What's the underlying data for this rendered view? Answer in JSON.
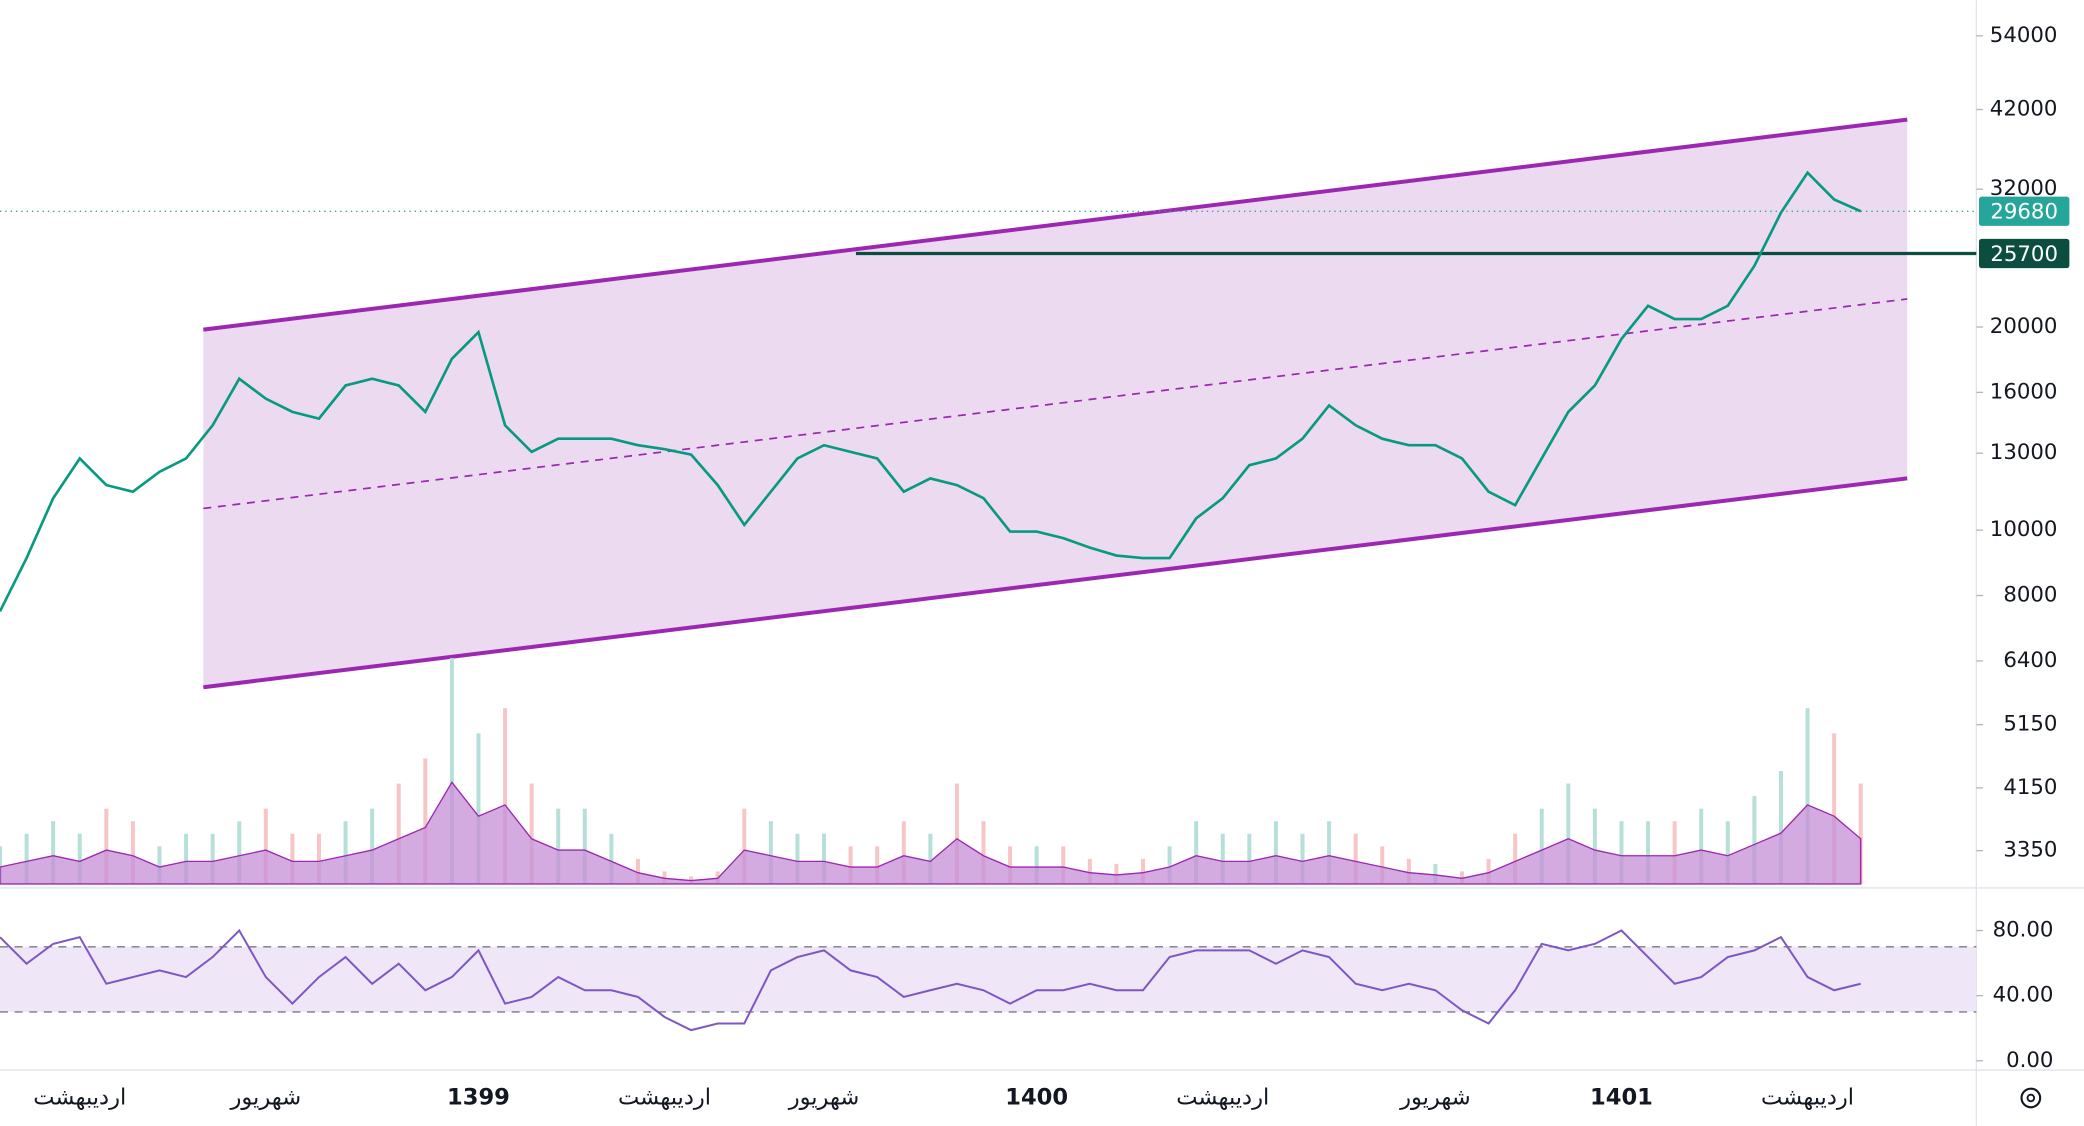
{
  "chart_data": {
    "type": "line",
    "categories": [
      null,
      null,
      null,
      "اردیبهشت",
      null,
      null,
      null,
      null,
      null,
      null,
      "شهریور",
      null,
      null,
      null,
      null,
      null,
      null,
      null,
      "1399",
      null,
      null,
      null,
      null,
      null,
      null,
      "اردیبهشت",
      null,
      null,
      null,
      null,
      null,
      "شهریور",
      null,
      null,
      null,
      null,
      null,
      null,
      null,
      "1400",
      null,
      null,
      null,
      null,
      null,
      null,
      "اردیبهشت",
      null,
      null,
      null,
      null,
      null,
      null,
      null,
      "شهریور",
      null,
      null,
      null,
      null,
      null,
      null,
      "1401",
      null,
      null,
      null,
      null,
      null,
      null,
      "اردیبهشت",
      null,
      null
    ],
    "values": [
      7580,
      9090,
      11150,
      12770,
      11660,
      11400,
      12200,
      12770,
      14300,
      16760,
      15660,
      14970,
      14630,
      16380,
      16760,
      16380,
      14970,
      17940,
      19650,
      14300,
      13060,
      13660,
      13660,
      13660,
      13360,
      13180,
      12940,
      11660,
      10180,
      11400,
      12770,
      13360,
      13060,
      12770,
      11400,
      11930,
      11660,
      11150,
      9950,
      9950,
      9730,
      9420,
      9170,
      9090,
      9090,
      10410,
      11150,
      12480,
      12770,
      13660,
      15300,
      14300,
      13660,
      13360,
      13360,
      12770,
      11400,
      10890,
      12770,
      14970,
      16380,
      19200,
      21500,
      20550,
      20550,
      21500,
      24640,
      29540,
      33850,
      30900,
      29680
    ],
    "color": "#089981",
    "log_scale": true,
    "ylim": [
      2990,
      61000
    ],
    "yticks": [
      3350,
      4150,
      5150,
      6400,
      8000,
      10000,
      13000,
      16000,
      20000,
      32000,
      42000,
      54000
    ],
    "channel": {
      "x": [
        7.65,
        71.75
      ],
      "upper": [
        19820,
        40580
      ],
      "lower": [
        5850,
        11930
      ],
      "color": "#9c27b0",
      "fill": "#e9d3ef"
    },
    "price_lines": [
      {
        "value": 29680,
        "color": "#26a69a",
        "style": "dotted"
      },
      {
        "value": 25700,
        "color": "#0b4d3f",
        "style": "solid",
        "start": 32.2
      }
    ],
    "volume": {
      "values": [
        15,
        20,
        25,
        20,
        30,
        25,
        15,
        20,
        20,
        25,
        30,
        20,
        20,
        25,
        30,
        40,
        50,
        90,
        60,
        70,
        40,
        30,
        30,
        20,
        10,
        5,
        3,
        5,
        30,
        25,
        20,
        20,
        15,
        15,
        25,
        20,
        40,
        25,
        15,
        15,
        15,
        10,
        8,
        10,
        15,
        25,
        20,
        20,
        25,
        20,
        25,
        20,
        15,
        10,
        8,
        5,
        10,
        20,
        30,
        40,
        30,
        25,
        25,
        25,
        30,
        25,
        35,
        45,
        70,
        60,
        40
      ],
      "up_color": "#b6dfd9",
      "down_color": "#f7c5c5",
      "area_color": "#c58fd6"
    },
    "rsi": {
      "values": [
        75.9,
        59.6,
        71.8,
        75.9,
        47.3,
        51.4,
        55.5,
        51.4,
        63.7,
        80.0,
        51.4,
        35.1,
        51.4,
        63.7,
        47.3,
        59.6,
        43.3,
        51.4,
        67.8,
        35.1,
        39.2,
        51.4,
        43.3,
        43.3,
        39.2,
        26.9,
        18.8,
        22.9,
        22.9,
        55.5,
        63.7,
        67.8,
        55.5,
        51.4,
        39.2,
        43.3,
        47.3,
        43.3,
        35.1,
        43.3,
        43.3,
        47.3,
        43.3,
        43.3,
        63.7,
        67.8,
        67.8,
        67.8,
        59.6,
        67.8,
        63.7,
        47.3,
        43.3,
        47.3,
        43.3,
        31.0,
        22.9,
        43.3,
        71.8,
        67.8,
        71.8,
        80.0,
        63.7,
        47.3,
        51.4,
        63.7,
        67.8,
        75.9,
        51.4,
        43.3,
        47.3
      ],
      "color": "#7e57c2",
      "ylim": [
        -5.7,
        104.5
      ],
      "yticks": [
        {
          "value": 0,
          "label": "0.00"
        },
        {
          "value": 40,
          "label": "40.00"
        },
        {
          "value": 80,
          "label": "80.00"
        }
      ],
      "band": [
        30,
        70
      ],
      "band_color": "#efe6f7"
    }
  }
}
